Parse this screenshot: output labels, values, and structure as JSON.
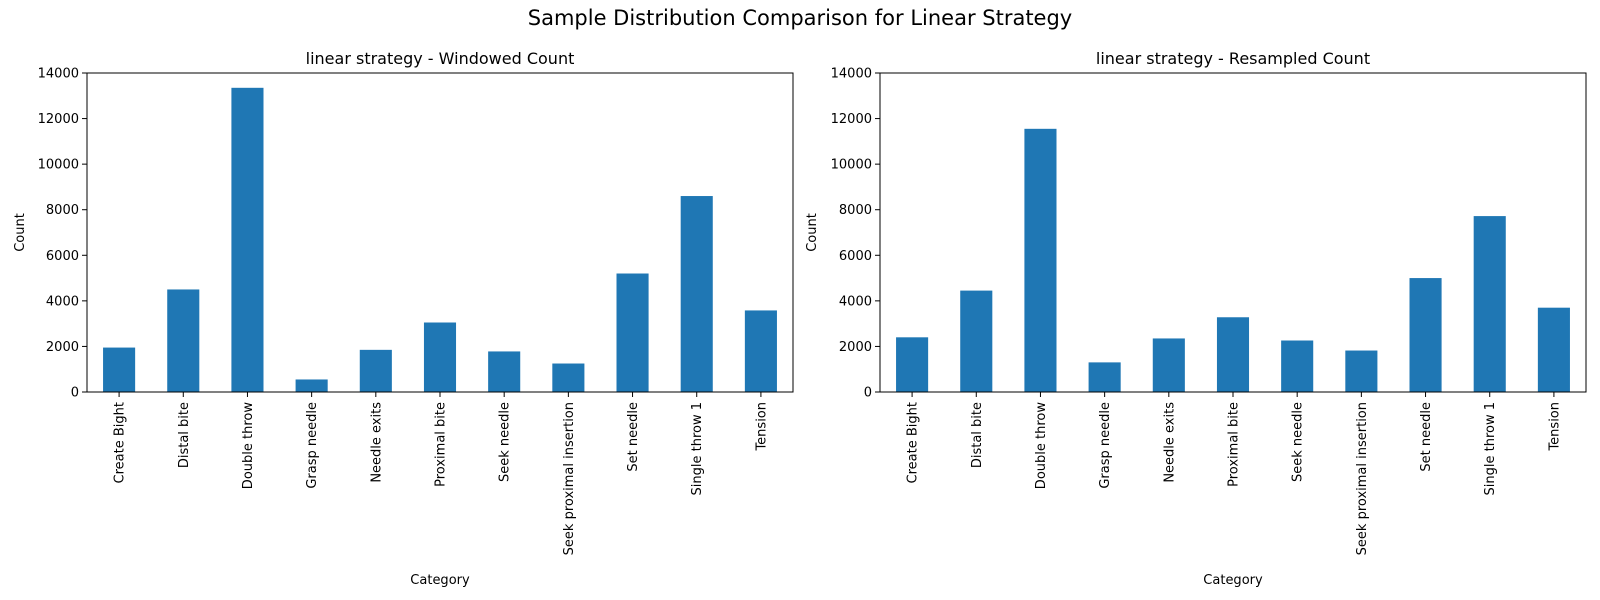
{
  "figure": {
    "title": "Sample Distribution Comparison for Linear Strategy"
  },
  "chart_data": [
    {
      "type": "bar",
      "title": "linear strategy - Windowed Count",
      "xlabel": "Category",
      "ylabel": "Count",
      "ylim": [
        0,
        14000
      ],
      "yticks": [
        "0",
        "2000",
        "4000",
        "6000",
        "8000",
        "10000",
        "12000",
        "14000"
      ],
      "categories": [
        "Create Bight",
        "Distal bite",
        "Double throw",
        "Grasp needle",
        "Needle exits",
        "Proximal bite",
        "Seek needle",
        "Seek proximal insertion",
        "Set needle",
        "Single throw 1",
        "Tension"
      ],
      "values": [
        1950,
        4500,
        13350,
        550,
        1850,
        3050,
        1780,
        1250,
        5200,
        8600,
        3580
      ],
      "bar_color": "#1f77b4",
      "grid": false,
      "legend": "none"
    },
    {
      "type": "bar",
      "title": "linear strategy - Resampled Count",
      "xlabel": "Category",
      "ylabel": "Count",
      "ylim": [
        0,
        14000
      ],
      "yticks": [
        "0",
        "2000",
        "4000",
        "6000",
        "8000",
        "10000",
        "12000",
        "14000"
      ],
      "categories": [
        "Create Bight",
        "Distal bite",
        "Double throw",
        "Grasp needle",
        "Needle exits",
        "Proximal bite",
        "Seek needle",
        "Seek proximal insertion",
        "Set needle",
        "Single throw 1",
        "Tension"
      ],
      "values": [
        2400,
        4450,
        11550,
        1300,
        2350,
        3280,
        2260,
        1820,
        5000,
        7720,
        3700
      ],
      "bar_color": "#1f77b4",
      "grid": false,
      "legend": "none"
    }
  ]
}
